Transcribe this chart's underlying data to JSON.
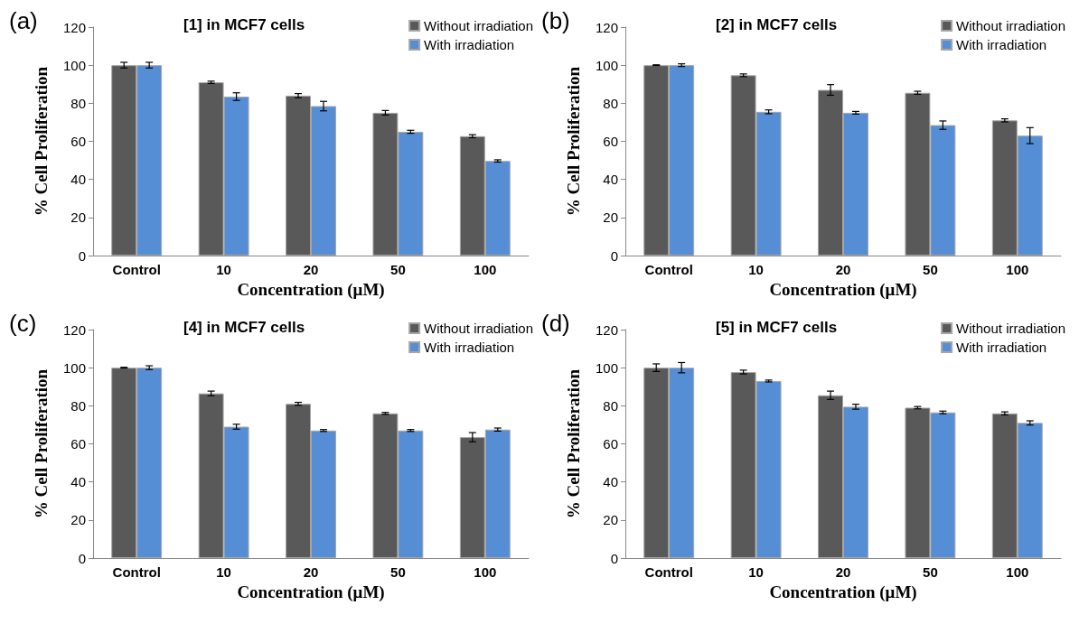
{
  "chart_data": [
    {
      "type": "bar",
      "title": "[1] in MCF7 cells",
      "annotations": [
        "(a)"
      ],
      "xlabel": "Concentration (μM)",
      "ylabel": "% Cell Proliferation",
      "categories": [
        "Control",
        "10",
        "20",
        "50",
        "100"
      ],
      "ylim": [
        0,
        120
      ],
      "yticks": [
        0,
        20,
        40,
        60,
        80,
        100,
        120
      ],
      "grid": false,
      "legend": "top right",
      "series": [
        {
          "name": "Without irradiation",
          "color": "#595959",
          "values": [
            100,
            91,
            84,
            75,
            62.7
          ],
          "errors": [
            1.5,
            0.6,
            1.1,
            1.2,
            0.8
          ]
        },
        {
          "name": "With irradiation",
          "color": "#558ed5",
          "values": [
            100,
            83.5,
            78.5,
            65,
            49.7
          ],
          "errors": [
            1.5,
            2,
            2.5,
            0.8,
            0.6
          ]
        }
      ]
    },
    {
      "type": "bar",
      "title": "[2] in MCF7 cells",
      "annotations": [
        "(b)"
      ],
      "xlabel": "Concentration (μM)",
      "ylabel": "% Cell Proliferation",
      "categories": [
        "Control",
        "10",
        "20",
        "50",
        "100"
      ],
      "ylim": [
        0,
        120
      ],
      "yticks": [
        0,
        20,
        40,
        60,
        80,
        100,
        120
      ],
      "grid": false,
      "legend": "top right",
      "series": [
        {
          "name": "Without irradiation",
          "color": "#595959",
          "values": [
            100,
            94.7,
            87,
            85.5,
            71
          ],
          "errors": [
            0.2,
            0.7,
            2.8,
            0.8,
            0.8
          ]
        },
        {
          "name": "With irradiation",
          "color": "#558ed5",
          "values": [
            100,
            75.5,
            75,
            68.5,
            63
          ],
          "errors": [
            0.7,
            1,
            0.7,
            2.2,
            4.2
          ]
        }
      ]
    },
    {
      "type": "bar",
      "title": "[4] in MCF7 cells",
      "annotations": [
        "(c)"
      ],
      "xlabel": "Concentration (μM)",
      "ylabel": "% Cell Proliferation",
      "categories": [
        "Control",
        "10",
        "20",
        "50",
        "100"
      ],
      "ylim": [
        0,
        120
      ],
      "yticks": [
        0,
        20,
        40,
        60,
        80,
        100,
        120
      ],
      "grid": false,
      "legend": "top right",
      "series": [
        {
          "name": "Without irradiation",
          "color": "#595959",
          "values": [
            100,
            86.5,
            81,
            76,
            63.5
          ],
          "errors": [
            0.2,
            1.2,
            0.8,
            0.5,
            2.4
          ]
        },
        {
          "name": "With irradiation",
          "color": "#558ed5",
          "values": [
            100,
            69,
            67,
            67,
            67.5
          ],
          "errors": [
            1,
            1.3,
            0.5,
            0.5,
            0.8
          ]
        }
      ]
    },
    {
      "type": "bar",
      "title": "[5] in MCF7 cells",
      "annotations": [
        "(d)"
      ],
      "xlabel": "Concentration (μM)",
      "ylabel": "% Cell Proliferation",
      "categories": [
        "Control",
        "10",
        "20",
        "50",
        "100"
      ],
      "ylim": [
        0,
        120
      ],
      "yticks": [
        0,
        20,
        40,
        60,
        80,
        100,
        120
      ],
      "grid": false,
      "legend": "top right",
      "series": [
        {
          "name": "Without irradiation",
          "color": "#595959",
          "values": [
            100,
            97.7,
            85.5,
            79,
            76
          ],
          "errors": [
            2,
            1,
            2.2,
            0.6,
            0.8
          ]
        },
        {
          "name": "With irradiation",
          "color": "#558ed5",
          "values": [
            100,
            93,
            79.5,
            76.5,
            71
          ],
          "errors": [
            2.7,
            0.5,
            1.3,
            0.7,
            1.1
          ]
        }
      ]
    }
  ]
}
